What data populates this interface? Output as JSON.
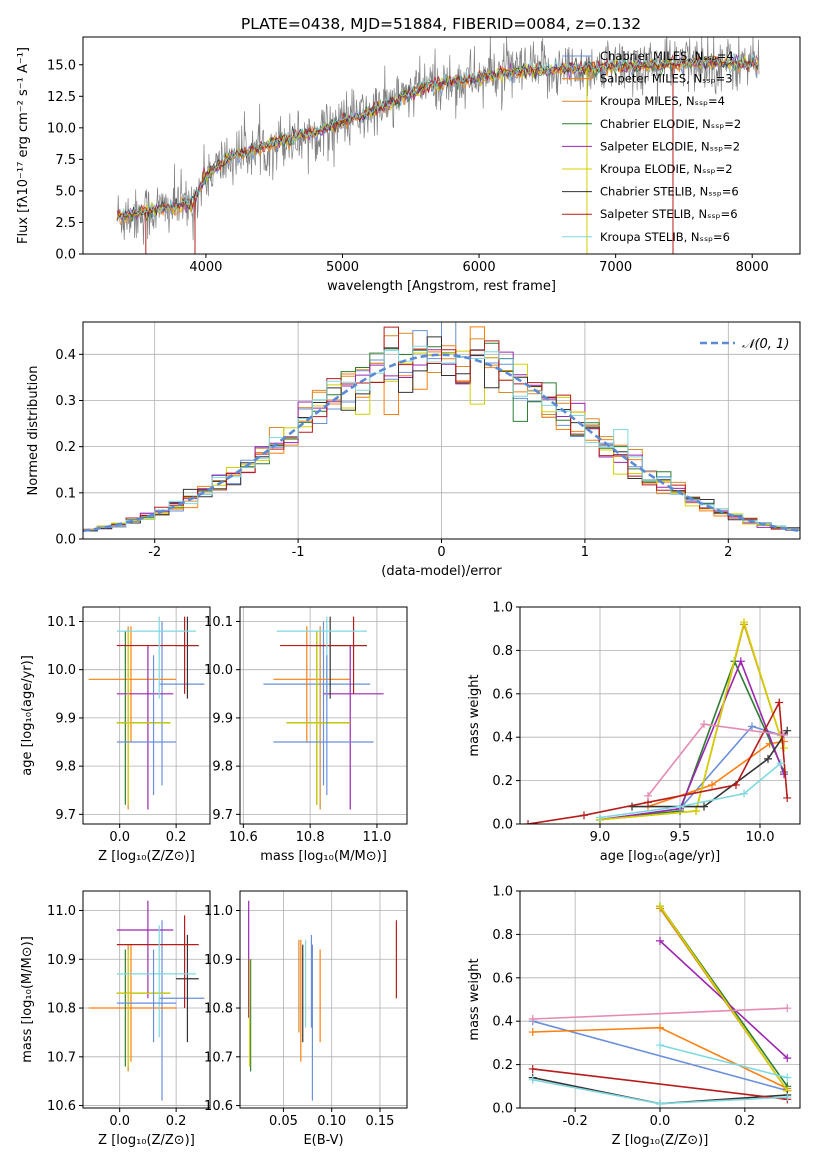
{
  "page_title": "PLATE=0438, MJD=51884, FIBERID=0084, z=0.132",
  "series_names": [
    "Chabrier MILES, Nₛₛₚ=4",
    "Salpeter MILES, Nₛₛₚ=3",
    "Kroupa MILES, Nₛₛₚ=4",
    "Chabrier ELODIE, Nₛₛₚ=2",
    "Salpeter ELODIE, Nₛₛₚ=2",
    "Kroupa ELODIE, Nₛₛₚ=2",
    "Chabrier STELIB, Nₛₛₚ=6",
    "Salpeter STELIB, Nₛₛₚ=6",
    "Kroupa STELIB, Nₛₛₚ=6"
  ],
  "colors": [
    "#6a8fdc",
    "#ff7f0e",
    "#d98b2b",
    "#2e7d32",
    "#9c27b0",
    "#d4d000",
    "#333333",
    "#b71c1c",
    "#7fd8e0"
  ],
  "chart_data": [
    {
      "type": "line",
      "title": "PLATE=0438, MJD=51884, FIBERID=0084, z=0.132",
      "xlabel": "wavelength [Angstrom, rest frame]",
      "ylabel": "Flux [fλ10⁻¹⁷ erg cm⁻² s⁻¹ A⁻¹]",
      "xlim": [
        3100,
        8350
      ],
      "ylim": [
        0,
        17.2
      ],
      "xticks": [
        4000,
        5000,
        6000,
        7000,
        8000
      ],
      "yticks": [
        0.0,
        2.5,
        5.0,
        7.5,
        10.0,
        12.5,
        15.0
      ],
      "legend_position": "top-right",
      "spectrum_anchor_points": [
        [
          3350,
          3.0
        ],
        [
          3600,
          3.4
        ],
        [
          3900,
          4.0
        ],
        [
          4000,
          6.2
        ],
        [
          4200,
          7.8
        ],
        [
          4400,
          8.4
        ],
        [
          4600,
          9.1
        ],
        [
          4800,
          9.6
        ],
        [
          5000,
          10.5
        ],
        [
          5200,
          11.2
        ],
        [
          5400,
          12.2
        ],
        [
          5600,
          13.2
        ],
        [
          5800,
          13.6
        ],
        [
          6000,
          14.0
        ],
        [
          6200,
          14.4
        ],
        [
          6500,
          14.6
        ],
        [
          6800,
          14.7
        ],
        [
          7100,
          14.9
        ],
        [
          7300,
          15.0
        ],
        [
          7600,
          15.2
        ],
        [
          8050,
          15.1
        ]
      ]
    },
    {
      "type": "bar",
      "subtype": "step-histogram",
      "xlabel": "(data-model)/error",
      "ylabel": "Normed distribution",
      "xlim": [
        -2.5,
        2.5
      ],
      "ylim": [
        0,
        0.47
      ],
      "xticks": [
        -2,
        -1,
        0,
        1,
        2
      ],
      "yticks": [
        0.0,
        0.1,
        0.2,
        0.3,
        0.4
      ],
      "grid": true,
      "legend_position": "top-right",
      "reference_curve": "𝒩(0, 1)",
      "bin_width": 0.1
    },
    {
      "type": "scatter",
      "subtype": "error-cross",
      "xlabel": "Z [log₁₀(Z/Z⊙)]",
      "ylabel": "age  [log₁₀(age/yr)]",
      "xlim": [
        -0.13,
        0.32
      ],
      "ylim": [
        9.68,
        10.13
      ],
      "xticks": [
        0.0,
        0.2
      ],
      "yticks": [
        9.7,
        9.8,
        9.9,
        10.0,
        10.1
      ],
      "grid": true,
      "points": [
        {
          "x": 0.15,
          "y": 9.97,
          "ex": [
            0.14,
            0.3
          ],
          "ey": [
            9.76,
            10.1
          ]
        },
        {
          "x": 0.04,
          "y": 9.98,
          "ex": [
            -0.11,
            0.2
          ],
          "ey": [
            9.85,
            10.09
          ]
        },
        {
          "x": 0.03,
          "y": 9.89,
          "ex": [
            -0.01,
            0.18
          ],
          "ey": [
            9.71,
            10.09
          ]
        },
        {
          "x": 0.02,
          "y": 9.89,
          "ex": [
            -0.01,
            0.18
          ],
          "ey": [
            9.72,
            10.08
          ]
        },
        {
          "x": 0.1,
          "y": 9.95,
          "ex": [
            -0.01,
            0.19
          ],
          "ey": [
            9.71,
            10.05
          ]
        },
        {
          "x": 0.03,
          "y": 9.89,
          "ex": [
            -0.01,
            0.18
          ],
          "ey": [
            9.72,
            10.08
          ]
        },
        {
          "x": 0.24,
          "y": 10.05,
          "ex": [
            0.2,
            0.28
          ],
          "ey": [
            9.94,
            10.11
          ]
        },
        {
          "x": 0.23,
          "y": 10.05,
          "ex": [
            -0.01,
            0.28
          ],
          "ey": [
            9.95,
            10.11
          ]
        },
        {
          "x": 0.14,
          "y": 10.08,
          "ex": [
            -0.01,
            0.27
          ],
          "ey": [
            9.94,
            10.11
          ]
        },
        {
          "x": 0.12,
          "y": 9.85,
          "ex": [
            -0.01,
            0.2
          ],
          "ey": [
            9.74,
            10.03
          ]
        }
      ]
    },
    {
      "type": "scatter",
      "subtype": "error-cross",
      "xlabel": "mass [log₁₀(M/M⊙)]",
      "ylabel": "",
      "xlim": [
        10.59,
        11.09
      ],
      "ylim": [
        9.68,
        10.13
      ],
      "xticks": [
        10.6,
        10.8,
        11.0
      ],
      "yticks": [
        9.7,
        9.8,
        9.9,
        10.0,
        10.1
      ],
      "grid": true,
      "points": [
        {
          "x": 10.84,
          "y": 9.97,
          "ex": [
            10.66,
            10.98
          ],
          "ey": [
            9.76,
            10.1
          ]
        },
        {
          "x": 10.79,
          "y": 9.98,
          "ex": [
            10.69,
            10.92
          ],
          "ey": [
            9.85,
            10.09
          ]
        },
        {
          "x": 10.83,
          "y": 9.89,
          "ex": [
            10.73,
            10.92
          ],
          "ey": [
            9.71,
            10.09
          ]
        },
        {
          "x": 10.82,
          "y": 9.89,
          "ex": [
            10.73,
            10.92
          ],
          "ey": [
            9.72,
            10.08
          ]
        },
        {
          "x": 10.92,
          "y": 9.95,
          "ex": [
            10.84,
            11.02
          ],
          "ey": [
            9.71,
            10.05
          ]
        },
        {
          "x": 10.82,
          "y": 9.89,
          "ex": [
            10.73,
            10.92
          ],
          "ey": [
            9.72,
            10.08
          ]
        },
        {
          "x": 10.86,
          "y": 10.05,
          "ex": [
            10.8,
            10.97
          ],
          "ey": [
            9.94,
            10.11
          ]
        },
        {
          "x": 10.93,
          "y": 10.05,
          "ex": [
            10.71,
            10.97
          ],
          "ey": [
            9.95,
            10.11
          ]
        },
        {
          "x": 10.85,
          "y": 10.08,
          "ex": [
            10.7,
            10.97
          ],
          "ey": [
            9.94,
            10.11
          ]
        },
        {
          "x": 10.85,
          "y": 9.85,
          "ex": [
            10.69,
            10.99
          ],
          "ey": [
            9.74,
            10.03
          ]
        }
      ]
    },
    {
      "type": "line",
      "xlabel": "age  [log₁₀(age/yr)]",
      "ylabel": "mass weight",
      "xlim": [
        8.5,
        10.25
      ],
      "ylim": [
        0,
        1.0
      ],
      "xticks": [
        9.0,
        9.5,
        10.0
      ],
      "yticks": [
        0.0,
        0.2,
        0.4,
        0.6,
        0.8,
        1.0
      ],
      "grid": true,
      "series": [
        {
          "values": [
            [
              9.0,
              0.02
            ],
            [
              9.5,
              0.07
            ],
            [
              9.95,
              0.45
            ],
            [
              10.13,
              0.41
            ]
          ]
        },
        {
          "values": [
            [
              9.3,
              0.08
            ],
            [
              9.7,
              0.18
            ],
            [
              10.06,
              0.37
            ],
            [
              10.15,
              0.38
            ]
          ]
        },
        {
          "values": [
            [
              9.0,
              0.02
            ],
            [
              9.6,
              0.06
            ],
            [
              9.9,
              0.92
            ],
            [
              10.15,
              0.35
            ]
          ]
        },
        {
          "values": [
            [
              9.0,
              0.02
            ],
            [
              9.5,
              0.06
            ],
            [
              9.84,
              0.75
            ],
            [
              10.15,
              0.24
            ]
          ]
        },
        {
          "values": [
            [
              9.0,
              0.02
            ],
            [
              9.5,
              0.07
            ],
            [
              9.88,
              0.75
            ],
            [
              10.15,
              0.23
            ]
          ]
        },
        {
          "values": [
            [
              9.0,
              0.02
            ],
            [
              9.6,
              0.06
            ],
            [
              9.9,
              0.93
            ],
            [
              10.15,
              0.35
            ]
          ]
        },
        {
          "values": [
            [
              9.2,
              0.08
            ],
            [
              9.65,
              0.08
            ],
            [
              10.05,
              0.3
            ],
            [
              10.17,
              0.43
            ]
          ]
        },
        {
          "values": [
            [
              8.55,
              0.0
            ],
            [
              8.9,
              0.04
            ],
            [
              9.3,
              0.1
            ],
            [
              9.85,
              0.18
            ],
            [
              10.12,
              0.56
            ],
            [
              10.17,
              0.12
            ]
          ]
        },
        {
          "values": [
            [
              9.0,
              0.03
            ],
            [
              9.5,
              0.08
            ],
            [
              9.9,
              0.14
            ],
            [
              10.13,
              0.28
            ]
          ]
        },
        {
          "values": [
            [
              9.3,
              0.13
            ],
            [
              9.65,
              0.46
            ],
            [
              10.15,
              0.41
            ]
          ]
        }
      ]
    },
    {
      "type": "scatter",
      "subtype": "error-cross",
      "xlabel": "Z [log₁₀(Z/Z⊙)]",
      "ylabel": "mass [log₁₀(M/M⊙)]",
      "xlim": [
        -0.13,
        0.32
      ],
      "ylim": [
        10.595,
        11.04
      ],
      "xticks": [
        0.0,
        0.2
      ],
      "yticks": [
        10.6,
        10.7,
        10.8,
        10.9,
        11.0
      ],
      "grid": true,
      "points": [
        {
          "x": 0.15,
          "y": 10.82,
          "ex": [
            0.14,
            0.3
          ],
          "ey": [
            10.61,
            10.98
          ]
        },
        {
          "x": 0.04,
          "y": 10.8,
          "ex": [
            -0.11,
            0.2
          ],
          "ey": [
            10.69,
            10.93
          ]
        },
        {
          "x": 0.03,
          "y": 10.83,
          "ex": [
            -0.01,
            0.18
          ],
          "ey": [
            10.67,
            10.93
          ]
        },
        {
          "x": 0.02,
          "y": 10.83,
          "ex": [
            -0.01,
            0.18
          ],
          "ey": [
            10.68,
            10.92
          ]
        },
        {
          "x": 0.1,
          "y": 10.96,
          "ex": [
            -0.01,
            0.19
          ],
          "ey": [
            10.82,
            11.02
          ]
        },
        {
          "x": 0.03,
          "y": 10.83,
          "ex": [
            -0.01,
            0.18
          ],
          "ey": [
            10.68,
            10.92
          ]
        },
        {
          "x": 0.24,
          "y": 10.86,
          "ex": [
            0.2,
            0.28
          ],
          "ey": [
            10.73,
            10.95
          ]
        },
        {
          "x": 0.23,
          "y": 10.93,
          "ex": [
            -0.01,
            0.28
          ],
          "ey": [
            10.8,
            10.99
          ]
        },
        {
          "x": 0.14,
          "y": 10.87,
          "ex": [
            -0.01,
            0.27
          ],
          "ey": [
            10.74,
            10.97
          ]
        },
        {
          "x": 0.12,
          "y": 10.81,
          "ex": [
            -0.01,
            0.2
          ],
          "ey": [
            10.73,
            10.92
          ]
        }
      ]
    },
    {
      "type": "scatter",
      "subtype": "vertical-error-bars",
      "xlabel": "E(B-V)",
      "ylabel": "",
      "xlim": [
        0.005,
        0.178
      ],
      "ylim": [
        10.595,
        11.04
      ],
      "xticks": [
        0.05,
        0.1,
        0.15
      ],
      "yticks": [
        10.6,
        10.7,
        10.8,
        10.9,
        11.0
      ],
      "grid": true,
      "points": [
        {
          "x": 0.08,
          "y": 10.82,
          "ey": [
            10.61,
            10.93
          ]
        },
        {
          "x": 0.068,
          "y": 10.8,
          "ey": [
            10.69,
            10.94
          ]
        },
        {
          "x": 0.066,
          "y": 10.83,
          "ey": [
            10.75,
            10.94
          ]
        },
        {
          "x": 0.016,
          "y": 10.83,
          "ey": [
            10.67,
            10.9
          ]
        },
        {
          "x": 0.014,
          "y": 10.96,
          "ey": [
            10.78,
            11.02
          ]
        },
        {
          "x": 0.015,
          "y": 10.83,
          "ey": [
            10.68,
            10.9
          ]
        },
        {
          "x": 0.07,
          "y": 10.86,
          "ey": [
            10.73,
            10.93
          ]
        },
        {
          "x": 0.167,
          "y": 10.9,
          "ey": [
            10.82,
            10.98
          ]
        },
        {
          "x": 0.073,
          "y": 10.87,
          "ey": [
            10.76,
            10.94
          ]
        },
        {
          "x": 0.079,
          "y": 10.89,
          "ey": [
            10.76,
            10.95
          ]
        },
        {
          "x": 0.088,
          "y": 10.86,
          "ey": [
            10.73,
            10.92
          ]
        }
      ]
    },
    {
      "type": "line",
      "xlabel": "Z [log₁₀(Z/Z⊙)]",
      "ylabel": "mass weight",
      "xlim": [
        -0.33,
        0.33
      ],
      "ylim": [
        0,
        1.0
      ],
      "xticks": [
        -0.2,
        0.0,
        0.2
      ],
      "yticks": [
        0.0,
        0.2,
        0.4,
        0.6,
        0.8,
        1.0
      ],
      "grid": true,
      "series": [
        {
          "values": [
            [
              -0.3,
              0.4
            ],
            [
              0.3,
              0.08
            ]
          ]
        },
        {
          "values": [
            [
              -0.3,
              0.35
            ],
            [
              0.0,
              0.37
            ],
            [
              0.3,
              0.09
            ]
          ]
        },
        {
          "values": [
            [
              0.0,
              0.92
            ],
            [
              0.3,
              0.08
            ]
          ]
        },
        {
          "values": [
            [
              0.0,
              0.93
            ],
            [
              0.3,
              0.1
            ]
          ]
        },
        {
          "values": [
            [
              0.0,
              0.77
            ],
            [
              0.3,
              0.23
            ]
          ]
        },
        {
          "values": [
            [
              0.0,
              0.93
            ],
            [
              0.3,
              0.08
            ]
          ]
        },
        {
          "values": [
            [
              -0.3,
              0.14
            ],
            [
              0.0,
              0.02
            ],
            [
              0.3,
              0.06
            ]
          ]
        },
        {
          "values": [
            [
              -0.3,
              0.18
            ],
            [
              0.3,
              0.04
            ]
          ]
        },
        {
          "values": [
            [
              -0.3,
              0.13
            ],
            [
              0.0,
              0.02
            ],
            [
              0.3,
              0.05
            ]
          ]
        },
        {
          "values": [
            [
              -0.3,
              0.41
            ],
            [
              0.3,
              0.46
            ]
          ]
        },
        {
          "values": [
            [
              0.0,
              0.29
            ],
            [
              0.3,
              0.14
            ]
          ]
        }
      ]
    }
  ]
}
